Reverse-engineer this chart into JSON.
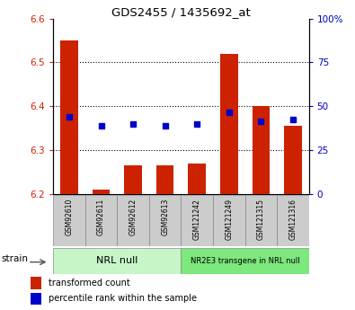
{
  "title": "GDS2455 / 1435692_at",
  "samples": [
    "GSM92610",
    "GSM92611",
    "GSM92612",
    "GSM92613",
    "GSM121242",
    "GSM121249",
    "GSM121315",
    "GSM121316"
  ],
  "red_values": [
    6.55,
    6.21,
    6.265,
    6.265,
    6.268,
    6.52,
    6.4,
    6.355
  ],
  "blue_values": [
    6.375,
    6.355,
    6.36,
    6.355,
    6.36,
    6.385,
    6.365,
    6.37
  ],
  "ylim_left": [
    6.2,
    6.6
  ],
  "ylim_right": [
    0,
    100
  ],
  "yticks_left": [
    6.2,
    6.3,
    6.4,
    6.5,
    6.6
  ],
  "yticks_right": [
    0,
    25,
    50,
    75,
    100
  ],
  "ytick_labels_right": [
    "0",
    "25",
    "50",
    "75",
    "100%"
  ],
  "bar_bottom": 6.2,
  "group1_label": "NRL null",
  "group2_label": "NR2E3 transgene in NRL null",
  "group1_indices": [
    0,
    1,
    2,
    3
  ],
  "group2_indices": [
    4,
    5,
    6,
    7
  ],
  "group1_color": "#c8f5c8",
  "group2_color": "#7de87d",
  "strain_label": "strain",
  "legend_red_label": "transformed count",
  "legend_blue_label": "percentile rank within the sample",
  "red_color": "#cc2200",
  "blue_color": "#0000cc",
  "bg_color": "#ffffff",
  "tick_color_left": "#cc2200",
  "tick_color_right": "#0000bb",
  "grid_color": "#000000",
  "xlabel_bg": "#cccccc",
  "gridline_y": [
    6.3,
    6.4,
    6.5
  ]
}
